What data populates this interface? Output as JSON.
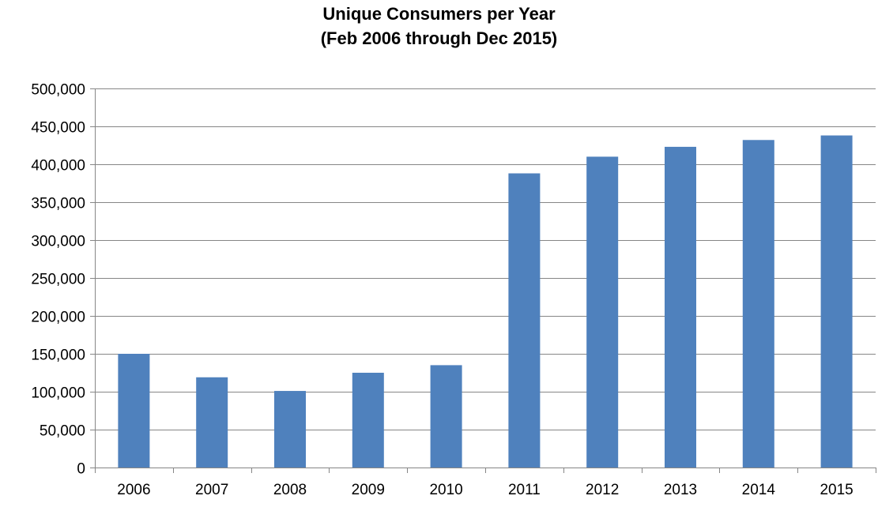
{
  "chart_data": {
    "type": "bar",
    "title": "Unique Consumers per Year",
    "subtitle": "(Feb 2006 through Dec 2015)",
    "xlabel": "",
    "ylabel": "",
    "categories": [
      "2006",
      "2007",
      "2008",
      "2009",
      "2010",
      "2011",
      "2012",
      "2013",
      "2014",
      "2015"
    ],
    "values": [
      150000,
      119000,
      101000,
      125000,
      135000,
      388000,
      410000,
      423000,
      432000,
      438000
    ],
    "ylim": [
      0,
      500000
    ],
    "yticks": [
      0,
      50000,
      100000,
      150000,
      200000,
      250000,
      300000,
      350000,
      400000,
      450000,
      500000
    ],
    "ytick_labels": [
      "0",
      "50,000",
      "100,000",
      "150,000",
      "200,000",
      "250,000",
      "300,000",
      "350,000",
      "400,000",
      "450,000",
      "500,000"
    ],
    "grid": true,
    "legend": "none",
    "bar_color": "#4f81bd"
  }
}
